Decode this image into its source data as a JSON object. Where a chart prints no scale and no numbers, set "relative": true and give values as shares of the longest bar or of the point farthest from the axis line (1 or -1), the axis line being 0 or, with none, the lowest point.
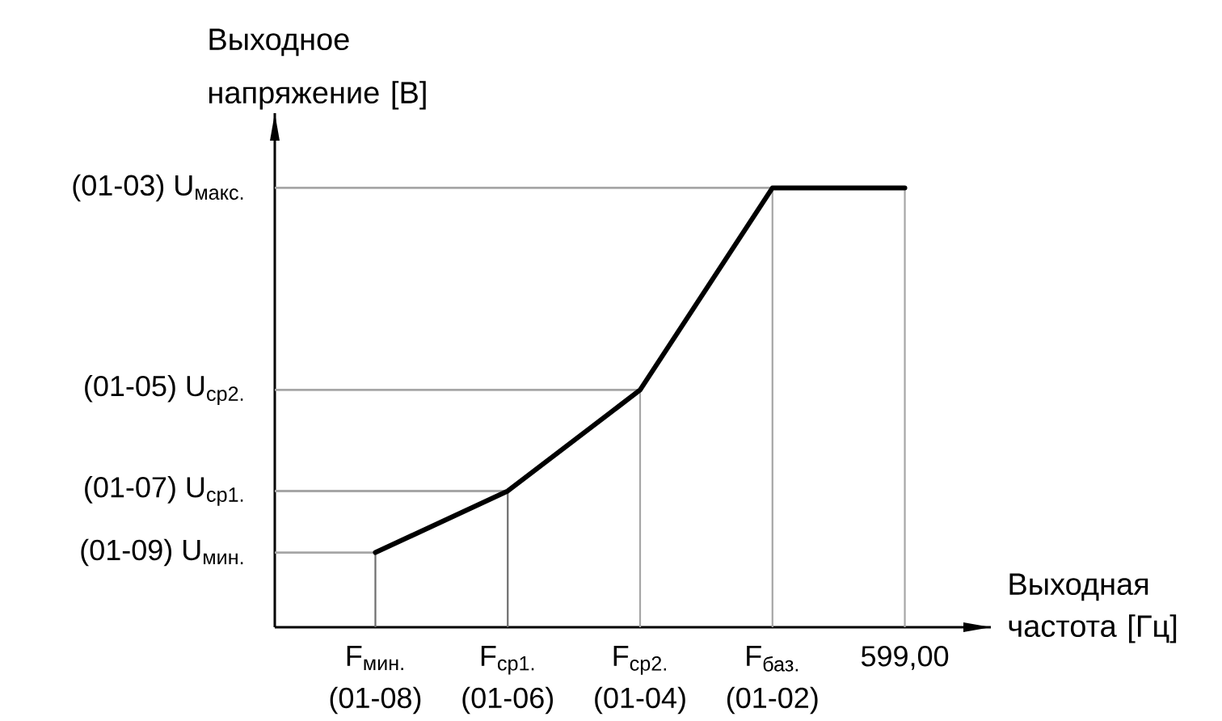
{
  "chart_data": {
    "type": "line",
    "xlabel": "Выходная частота [Гц]",
    "ylabel": "Выходное напряжение [В]",
    "categories": [
      "F$_{мин.}$ (01-08)",
      "F$_{ср1.}$ (01-06)",
      "F$_{ср2.}$ (01-04)",
      "F$_{баз.}$ (01-02)",
      "599,00"
    ],
    "series": [
      {
        "color": "#000000",
        "values": [
          0.17,
          0.31,
          0.54,
          1,
          1
        ]
      }
    ],
    "relative": true,
    "marker": "none",
    "line_style": "solid",
    "ref_lines": [
      {
        "axis": "y",
        "value": 1,
        "label": "(01-03) U$_{макс.}$",
        "color": "#a6a6a6"
      },
      {
        "axis": "y",
        "value": 0.54,
        "label": "(01-05) U$_{ср2.}$",
        "color": "#a6a6a6"
      },
      {
        "axis": "y",
        "value": 0.31,
        "label": "(01-07) U$_{ср1.}$",
        "color": "#a6a6a6"
      },
      {
        "axis": "y",
        "value": 0.17,
        "label": "(01-09) U$_{мин.}$",
        "color": "#a6a6a6"
      },
      {
        "axis": "x",
        "value": "F$_{мин.}$ (01-08)",
        "color": "#6e6e6e"
      },
      {
        "axis": "x",
        "value": "F$_{ср1.}$ (01-06)",
        "color": "#6e6e6e"
      },
      {
        "axis": "x",
        "value": "F$_{ср2.}$ (01-04)",
        "color": "#a6a6a6"
      },
      {
        "axis": "x",
        "value": "F$_{баз.}$ (01-02)",
        "color": "#a6a6a6"
      },
      {
        "axis": "x",
        "value": "599,00",
        "color": "#a6a6a6"
      }
    ]
  }
}
